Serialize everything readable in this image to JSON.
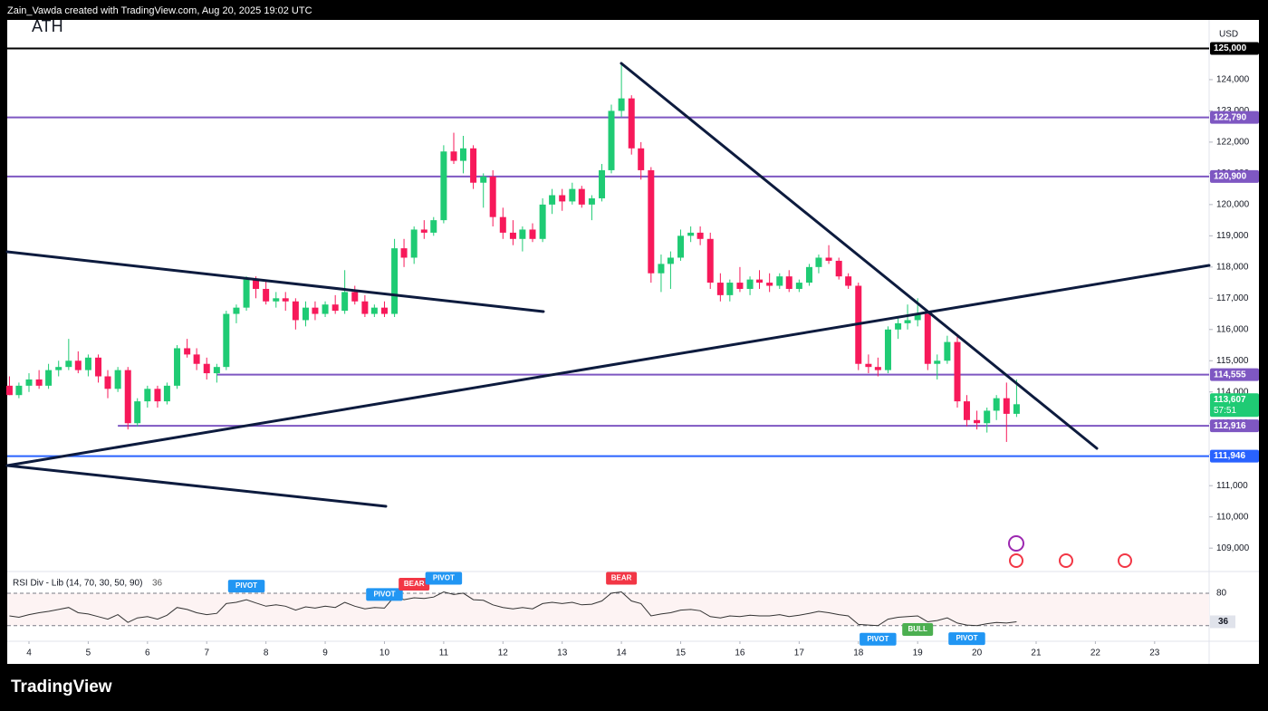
{
  "header": "Zain_Vawda created with TradingView.com, Aug 20, 2025 19:02 UTC",
  "logo": "TradingView",
  "chart_data": {
    "type": "candlestick",
    "currency": "USD",
    "annotation": "ATH",
    "up_color": "#1fcb74",
    "down_color": "#f7195a",
    "xlim": [
      3.633,
      23.92
    ],
    "xticks": [
      4,
      5,
      6,
      7,
      8,
      9,
      10,
      11,
      12,
      13,
      14,
      15,
      16,
      17,
      18,
      19,
      20,
      21,
      22,
      23
    ],
    "ylim": [
      108280,
      125680
    ],
    "yticks": [
      {
        "value": 109000,
        "label": "109,000"
      },
      {
        "value": 110000,
        "label": "110,000"
      },
      {
        "value": 111000,
        "label": "111,000"
      },
      {
        "value": 112000,
        "label": "112,000"
      },
      {
        "value": 113000,
        "label": "113,000"
      },
      {
        "value": 114000,
        "label": "114,000"
      },
      {
        "value": 115000,
        "label": "115,000"
      },
      {
        "value": 116000,
        "label": "116,000"
      },
      {
        "value": 117000,
        "label": "117,000"
      },
      {
        "value": 118000,
        "label": "118,000"
      },
      {
        "value": 119000,
        "label": "119,000"
      },
      {
        "value": 120000,
        "label": "120,000"
      },
      {
        "value": 121000,
        "label": "121,000"
      },
      {
        "value": 122000,
        "label": "122,000"
      },
      {
        "value": 123000,
        "label": "123,000"
      },
      {
        "value": 124000,
        "label": "124,000"
      }
    ],
    "levels": [
      {
        "value": 125000,
        "label": "125,000",
        "color": "#000000"
      },
      {
        "value": 122790,
        "label": "122,790",
        "color": "#7e57c2"
      },
      {
        "value": 120900,
        "label": "120,900",
        "color": "#7e57c2"
      },
      {
        "value": 114555,
        "label": "114,555",
        "color": "#7e57c2",
        "start": 7.17
      },
      {
        "value": 112916,
        "label": "112,916",
        "color": "#7e57c2",
        "start": 5.5
      },
      {
        "value": 111946,
        "label": "111,946",
        "color": "#2962ff"
      }
    ],
    "last_label": "113,607",
    "countdown": "57:51",
    "candles": [
      {
        "x": 3.67,
        "open": 114200,
        "high": 114500,
        "low": 113900,
        "close": 113900
      },
      {
        "x": 3.83,
        "open": 113900,
        "high": 114300,
        "low": 113800,
        "close": 114200
      },
      {
        "x": 4,
        "open": 114200,
        "high": 114600,
        "low": 114000,
        "close": 114400
      },
      {
        "x": 4.17,
        "open": 114400,
        "high": 114700,
        "low": 114100,
        "close": 114200
      },
      {
        "x": 4.33,
        "open": 114200,
        "high": 114900,
        "low": 114100,
        "close": 114700
      },
      {
        "x": 4.5,
        "open": 114700,
        "high": 115000,
        "low": 114500,
        "close": 114800
      },
      {
        "x": 4.67,
        "open": 114800,
        "high": 115700,
        "low": 114700,
        "close": 115000
      },
      {
        "x": 4.83,
        "open": 115000,
        "high": 115300,
        "low": 114600,
        "close": 114700
      },
      {
        "x": 5,
        "open": 114700,
        "high": 115200,
        "low": 114500,
        "close": 115100
      },
      {
        "x": 5.17,
        "open": 115100,
        "high": 115200,
        "low": 114300,
        "close": 114500
      },
      {
        "x": 5.33,
        "open": 114500,
        "high": 114700,
        "low": 113800,
        "close": 114100
      },
      {
        "x": 5.5,
        "open": 114100,
        "high": 114800,
        "low": 114000,
        "close": 114700
      },
      {
        "x": 5.67,
        "open": 114700,
        "high": 114800,
        "low": 112800,
        "close": 113000
      },
      {
        "x": 5.83,
        "open": 113000,
        "high": 113800,
        "low": 112900,
        "close": 113700
      },
      {
        "x": 6,
        "open": 113700,
        "high": 114200,
        "low": 113500,
        "close": 114100
      },
      {
        "x": 6.17,
        "open": 114100,
        "high": 114200,
        "low": 113500,
        "close": 113700
      },
      {
        "x": 6.33,
        "open": 113700,
        "high": 114300,
        "low": 113600,
        "close": 114200
      },
      {
        "x": 6.5,
        "open": 114200,
        "high": 115500,
        "low": 114100,
        "close": 115400
      },
      {
        "x": 6.67,
        "open": 115400,
        "high": 115700,
        "low": 115100,
        "close": 115200
      },
      {
        "x": 6.83,
        "open": 115200,
        "high": 115400,
        "low": 114700,
        "close": 114900
      },
      {
        "x": 7,
        "open": 114900,
        "high": 115100,
        "low": 114400,
        "close": 114600
      },
      {
        "x": 7.17,
        "open": 114600,
        "high": 114900,
        "low": 114300,
        "close": 114800
      },
      {
        "x": 7.33,
        "open": 114800,
        "high": 116600,
        "low": 114700,
        "close": 116500
      },
      {
        "x": 7.5,
        "open": 116500,
        "high": 116800,
        "low": 116200,
        "close": 116700
      },
      {
        "x": 7.67,
        "open": 116700,
        "high": 117700,
        "low": 116600,
        "close": 117600
      },
      {
        "x": 7.83,
        "open": 117600,
        "high": 117700,
        "low": 117000,
        "close": 117300
      },
      {
        "x": 8,
        "open": 117300,
        "high": 117600,
        "low": 116800,
        "close": 116900
      },
      {
        "x": 8.17,
        "open": 116900,
        "high": 117200,
        "low": 116700,
        "close": 117000
      },
      {
        "x": 8.33,
        "open": 117000,
        "high": 117200,
        "low": 116600,
        "close": 116900
      },
      {
        "x": 8.5,
        "open": 116900,
        "high": 117000,
        "low": 116000,
        "close": 116300
      },
      {
        "x": 8.67,
        "open": 116300,
        "high": 116900,
        "low": 116100,
        "close": 116700
      },
      {
        "x": 8.83,
        "open": 116700,
        "high": 116900,
        "low": 116300,
        "close": 116500
      },
      {
        "x": 9,
        "open": 116500,
        "high": 116900,
        "low": 116400,
        "close": 116800
      },
      {
        "x": 9.17,
        "open": 116800,
        "high": 117100,
        "low": 116500,
        "close": 116600
      },
      {
        "x": 9.33,
        "open": 116600,
        "high": 117900,
        "low": 116500,
        "close": 117200
      },
      {
        "x": 9.5,
        "open": 117200,
        "high": 117400,
        "low": 116800,
        "close": 116900
      },
      {
        "x": 9.67,
        "open": 116900,
        "high": 117100,
        "low": 116400,
        "close": 116500
      },
      {
        "x": 9.83,
        "open": 116500,
        "high": 116800,
        "low": 116400,
        "close": 116700
      },
      {
        "x": 10,
        "open": 116700,
        "high": 116900,
        "low": 116400,
        "close": 116500
      },
      {
        "x": 10.17,
        "open": 116500,
        "high": 118900,
        "low": 116400,
        "close": 118600
      },
      {
        "x": 10.33,
        "open": 118600,
        "high": 118900,
        "low": 118000,
        "close": 118300
      },
      {
        "x": 10.5,
        "open": 118300,
        "high": 119300,
        "low": 118100,
        "close": 119200
      },
      {
        "x": 10.67,
        "open": 119200,
        "high": 119500,
        "low": 118900,
        "close": 119100
      },
      {
        "x": 10.83,
        "open": 119100,
        "high": 119600,
        "low": 119000,
        "close": 119500
      },
      {
        "x": 11,
        "open": 119500,
        "high": 121900,
        "low": 119400,
        "close": 121700
      },
      {
        "x": 11.17,
        "open": 121700,
        "high": 122300,
        "low": 121300,
        "close": 121400
      },
      {
        "x": 11.33,
        "open": 121400,
        "high": 122200,
        "low": 121000,
        "close": 121800
      },
      {
        "x": 11.5,
        "open": 121800,
        "high": 121900,
        "low": 120500,
        "close": 120700
      },
      {
        "x": 11.67,
        "open": 120700,
        "high": 121000,
        "low": 119900,
        "close": 120900
      },
      {
        "x": 11.83,
        "open": 120900,
        "high": 121100,
        "low": 119300,
        "close": 119600
      },
      {
        "x": 12,
        "open": 119600,
        "high": 119900,
        "low": 118900,
        "close": 119100
      },
      {
        "x": 12.17,
        "open": 119100,
        "high": 119500,
        "low": 118700,
        "close": 118900
      },
      {
        "x": 12.33,
        "open": 118900,
        "high": 119300,
        "low": 118500,
        "close": 119200
      },
      {
        "x": 12.5,
        "open": 119200,
        "high": 119400,
        "low": 118800,
        "close": 118900
      },
      {
        "x": 12.67,
        "open": 118900,
        "high": 120200,
        "low": 118800,
        "close": 120000
      },
      {
        "x": 12.83,
        "open": 120000,
        "high": 120500,
        "low": 119700,
        "close": 120300
      },
      {
        "x": 13,
        "open": 120300,
        "high": 120500,
        "low": 119800,
        "close": 120100
      },
      {
        "x": 13.17,
        "open": 120100,
        "high": 120700,
        "low": 120000,
        "close": 120500
      },
      {
        "x": 13.33,
        "open": 120500,
        "high": 120600,
        "low": 119900,
        "close": 120000
      },
      {
        "x": 13.5,
        "open": 120000,
        "high": 120300,
        "low": 119500,
        "close": 120200
      },
      {
        "x": 13.67,
        "open": 120200,
        "high": 121300,
        "low": 120100,
        "close": 121100
      },
      {
        "x": 13.83,
        "open": 121100,
        "high": 123200,
        "low": 121000,
        "close": 123000
      },
      {
        "x": 14,
        "open": 123000,
        "high": 124500,
        "low": 122800,
        "close": 123400
      },
      {
        "x": 14.17,
        "open": 123400,
        "high": 123500,
        "low": 121600,
        "close": 121800
      },
      {
        "x": 14.33,
        "open": 121800,
        "high": 122000,
        "low": 120800,
        "close": 121100
      },
      {
        "x": 14.5,
        "open": 121100,
        "high": 121200,
        "low": 117500,
        "close": 117800
      },
      {
        "x": 14.67,
        "open": 117800,
        "high": 118400,
        "low": 117200,
        "close": 118100
      },
      {
        "x": 14.83,
        "open": 118100,
        "high": 118500,
        "low": 117300,
        "close": 118300
      },
      {
        "x": 15,
        "open": 118300,
        "high": 119200,
        "low": 118200,
        "close": 119000
      },
      {
        "x": 15.17,
        "open": 119000,
        "high": 119300,
        "low": 118800,
        "close": 119100
      },
      {
        "x": 15.33,
        "open": 119100,
        "high": 119300,
        "low": 118700,
        "close": 118900
      },
      {
        "x": 15.5,
        "open": 118900,
        "high": 119100,
        "low": 117300,
        "close": 117500
      },
      {
        "x": 15.67,
        "open": 117500,
        "high": 117800,
        "low": 116900,
        "close": 117100
      },
      {
        "x": 15.83,
        "open": 117100,
        "high": 117600,
        "low": 116900,
        "close": 117500
      },
      {
        "x": 16,
        "open": 117500,
        "high": 118000,
        "low": 117200,
        "close": 117300
      },
      {
        "x": 16.17,
        "open": 117300,
        "high": 117700,
        "low": 117100,
        "close": 117600
      },
      {
        "x": 16.33,
        "open": 117600,
        "high": 117900,
        "low": 117300,
        "close": 117500
      },
      {
        "x": 16.5,
        "open": 117500,
        "high": 117800,
        "low": 117200,
        "close": 117400
      },
      {
        "x": 16.67,
        "open": 117400,
        "high": 117800,
        "low": 117300,
        "close": 117700
      },
      {
        "x": 16.83,
        "open": 117700,
        "high": 117900,
        "low": 117200,
        "close": 117300
      },
      {
        "x": 17,
        "open": 117300,
        "high": 117600,
        "low": 117200,
        "close": 117500
      },
      {
        "x": 17.17,
        "open": 117500,
        "high": 118100,
        "low": 117400,
        "close": 118000
      },
      {
        "x": 17.33,
        "open": 118000,
        "high": 118400,
        "low": 117800,
        "close": 118300
      },
      {
        "x": 17.5,
        "open": 118300,
        "high": 118700,
        "low": 118100,
        "close": 118200
      },
      {
        "x": 17.67,
        "open": 118200,
        "high": 118300,
        "low": 117600,
        "close": 117700
      },
      {
        "x": 17.83,
        "open": 117700,
        "high": 117800,
        "low": 117300,
        "close": 117400
      },
      {
        "x": 18,
        "open": 117400,
        "high": 117500,
        "low": 114700,
        "close": 114900
      },
      {
        "x": 18.17,
        "open": 114900,
        "high": 115200,
        "low": 114600,
        "close": 114800
      },
      {
        "x": 18.33,
        "open": 114800,
        "high": 115100,
        "low": 114500,
        "close": 114700
      },
      {
        "x": 18.5,
        "open": 114700,
        "high": 116100,
        "low": 114600,
        "close": 116000
      },
      {
        "x": 18.67,
        "open": 116000,
        "high": 116400,
        "low": 115700,
        "close": 116200
      },
      {
        "x": 18.83,
        "open": 116200,
        "high": 116800,
        "low": 116000,
        "close": 116300
      },
      {
        "x": 19,
        "open": 116300,
        "high": 117000,
        "low": 116100,
        "close": 116500
      },
      {
        "x": 19.17,
        "open": 116500,
        "high": 116600,
        "low": 114700,
        "close": 114900
      },
      {
        "x": 19.33,
        "open": 114900,
        "high": 115200,
        "low": 114400,
        "close": 115000
      },
      {
        "x": 19.5,
        "open": 115000,
        "high": 115800,
        "low": 114900,
        "close": 115600
      },
      {
        "x": 19.67,
        "open": 115600,
        "high": 115800,
        "low": 113500,
        "close": 113700
      },
      {
        "x": 19.83,
        "open": 113700,
        "high": 113900,
        "low": 112900,
        "close": 113100
      },
      {
        "x": 20,
        "open": 113100,
        "high": 113400,
        "low": 112800,
        "close": 113000
      },
      {
        "x": 20.17,
        "open": 113000,
        "high": 113500,
        "low": 112700,
        "close": 113400
      },
      {
        "x": 20.33,
        "open": 113400,
        "high": 113900,
        "low": 113100,
        "close": 113800
      },
      {
        "x": 20.5,
        "open": 113800,
        "high": 114300,
        "low": 112400,
        "close": 113300
      },
      {
        "x": 20.67,
        "open": 113300,
        "high": 114400,
        "low": 113200,
        "close": 113607
      }
    ],
    "rsi": {
      "title": "RSI Div - Lib (14, 70, 30, 50, 90)",
      "ylim": [
        6,
        112
      ],
      "yticks": [
        80
      ],
      "levels": [
        80,
        30
      ],
      "color": "#333333",
      "values": [
        45,
        43,
        47,
        50,
        52,
        55,
        58,
        50,
        48,
        44,
        40,
        47,
        35,
        42,
        44,
        40,
        46,
        58,
        55,
        50,
        47,
        49,
        64,
        66,
        70,
        65,
        60,
        62,
        60,
        54,
        59,
        57,
        60,
        58,
        66,
        60,
        56,
        58,
        57,
        75,
        70,
        73,
        72,
        74,
        82,
        78,
        80,
        70,
        69,
        62,
        58,
        56,
        58,
        56,
        64,
        66,
        64,
        66,
        62,
        63,
        68,
        80,
        82,
        68,
        64,
        45,
        48,
        50,
        54,
        55,
        53,
        44,
        42,
        45,
        44,
        46,
        45,
        45,
        47,
        44,
        46,
        49,
        52,
        50,
        47,
        45,
        32,
        31,
        30,
        40,
        43,
        44,
        45,
        36,
        38,
        42,
        34,
        31,
        30,
        33,
        35,
        34,
        36
      ],
      "signals": [
        {
          "text": "PIVOT",
          "x": 7.67,
          "side": "above",
          "color": "#2196f3"
        },
        {
          "text": "PIVOT",
          "x": 10,
          "side": "above",
          "color": "#2196f3"
        },
        {
          "text": "BEAR",
          "x": 10.5,
          "side": "above",
          "color": "#f23645"
        },
        {
          "text": "PIVOT",
          "x": 11,
          "side": "above",
          "color": "#2196f3"
        },
        {
          "text": "BEAR",
          "x": 14,
          "side": "above",
          "color": "#f23645"
        },
        {
          "text": "PIVOT",
          "x": 18.33,
          "side": "below",
          "color": "#2196f3"
        },
        {
          "text": "BULL",
          "x": 19,
          "side": "below",
          "color": "#4caf50"
        },
        {
          "text": "PIVOT",
          "x": 19.83,
          "side": "below",
          "color": "#2196f3"
        }
      ]
    }
  }
}
